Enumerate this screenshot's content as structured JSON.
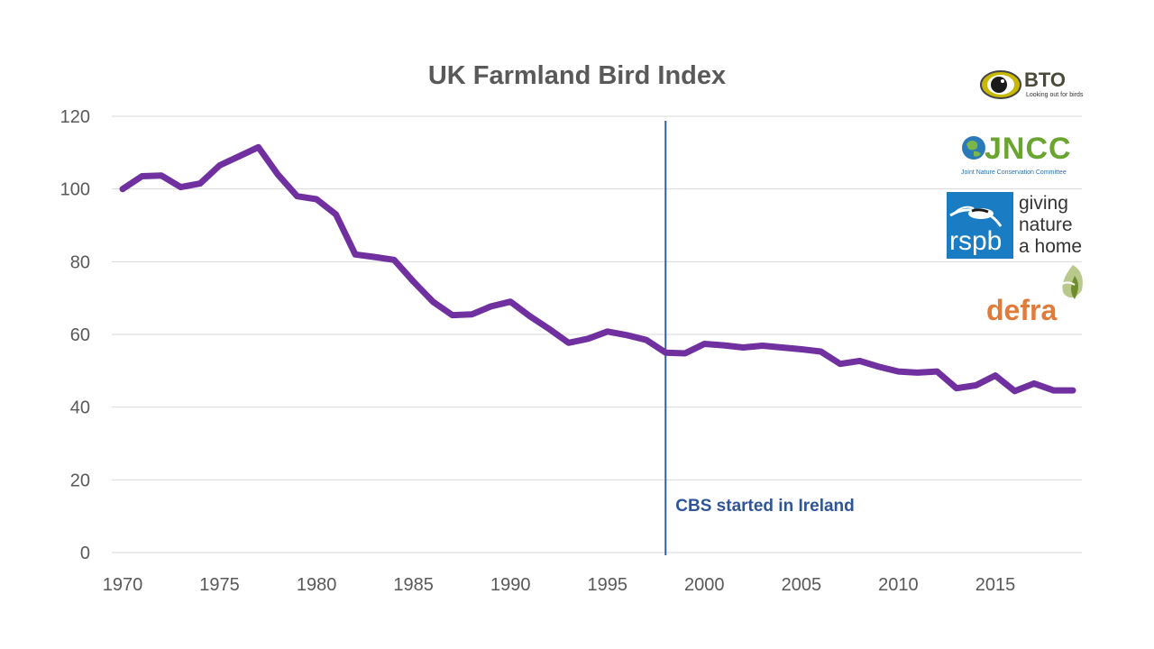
{
  "chart_data": {
    "type": "line",
    "title": "UK Farmland Bird Index",
    "xlabel": "",
    "ylabel": "",
    "xlim": [
      1970,
      2019
    ],
    "ylim": [
      0,
      120
    ],
    "x_ticks": [
      1970,
      1975,
      1980,
      1985,
      1990,
      1995,
      2000,
      2005,
      2010,
      2015
    ],
    "y_ticks": [
      0,
      20,
      40,
      60,
      80,
      100,
      120
    ],
    "grid": true,
    "legend": "none",
    "series": [
      {
        "color": "#7030a0",
        "x": [
          1970,
          1971,
          1972,
          1973,
          1974,
          1975,
          1976,
          1977,
          1978,
          1979,
          1980,
          1981,
          1982,
          1983,
          1984,
          1985,
          1986,
          1987,
          1988,
          1989,
          1990,
          1991,
          1992,
          1993,
          1994,
          1995,
          1996,
          1997,
          1998,
          1999,
          2000,
          2001,
          2002,
          2003,
          2004,
          2005,
          2006,
          2007,
          2008,
          2009,
          2010,
          2011,
          2012,
          2013,
          2014,
          2015,
          2016,
          2017,
          2018,
          2019
        ],
        "y": [
          100,
          103.5,
          103.7,
          100.5,
          101.5,
          106.5,
          109,
          111.5,
          104,
          98,
          97.2,
          93,
          82,
          81.3,
          80.5,
          74.5,
          69,
          65.3,
          65.5,
          67.7,
          69,
          65,
          61.5,
          57.7,
          58.8,
          60.8,
          59.8,
          58.5,
          55,
          54.8,
          57.4,
          57,
          56.4,
          56.9,
          56.4,
          55.9,
          55.3,
          51.9,
          52.7,
          51.1,
          49.8,
          49.5,
          49.8,
          45.2,
          46,
          48.7,
          44.4,
          46.5,
          44.6,
          44.6
        ]
      }
    ],
    "annotations": [
      {
        "type": "vline",
        "x": 1998,
        "text": "CBS started in Ireland",
        "color": "#2e5f9e"
      }
    ]
  },
  "logos": {
    "bto": {
      "name": "BTO",
      "tagline": "Looking out for birds"
    },
    "jncc": {
      "name": "JNCC",
      "tagline": "Joint Nature Conservation Committee"
    },
    "rspb": {
      "name": "rspb",
      "slogan_1": "giving",
      "slogan_2": "nature",
      "slogan_3": "a home"
    },
    "defra": {
      "name": "defra"
    }
  },
  "colors": {
    "line": "#7030a0",
    "annotation_line": "#2e5f9e",
    "annotation_text": "#2f5597",
    "grid": "#d9d9d9",
    "text": "#595959"
  }
}
